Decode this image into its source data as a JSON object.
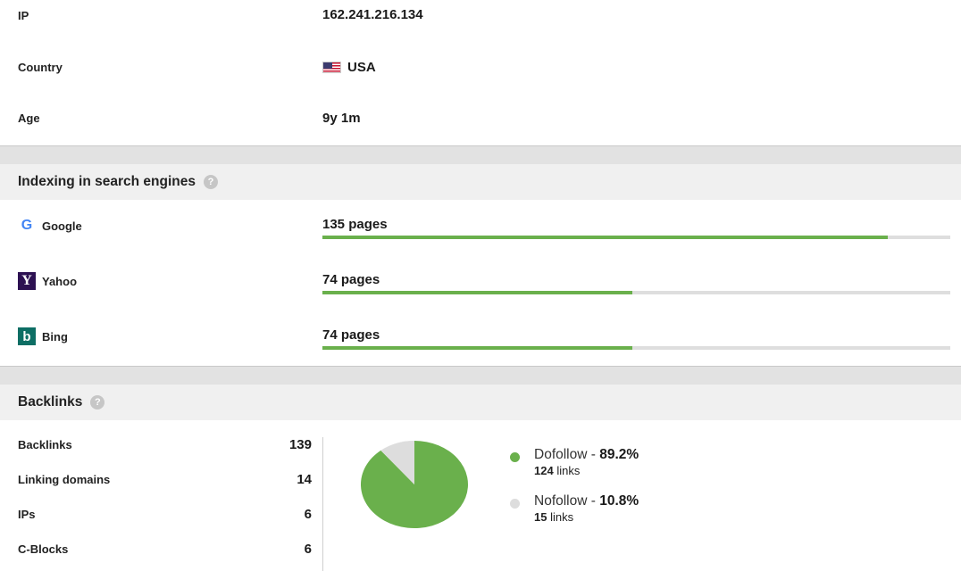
{
  "info": {
    "ip": {
      "label": "IP",
      "value": "162.241.216.134"
    },
    "country": {
      "label": "Country",
      "value": "USA",
      "flag_icon": "us-flag-icon"
    },
    "age": {
      "label": "Age",
      "value": "9y 1m"
    }
  },
  "indexing": {
    "title": "Indexing in search engines",
    "help_icon": "help-icon",
    "engines": [
      {
        "name": "Google",
        "icon": "google-icon",
        "logo_glyph": "G",
        "pages": "135 pages",
        "fill_fraction": 0.9,
        "color": "#6ab04c"
      },
      {
        "name": "Yahoo",
        "icon": "yahoo-icon",
        "logo_glyph": "Y",
        "pages": "74 pages",
        "fill_fraction": 0.493,
        "color": "#6ab04c"
      },
      {
        "name": "Bing",
        "icon": "bing-icon",
        "logo_glyph": "b",
        "pages": "74 pages",
        "fill_fraction": 0.493,
        "color": "#6ab04c"
      }
    ]
  },
  "backlinks": {
    "title": "Backlinks",
    "help_icon": "help-icon",
    "stats": [
      {
        "label": "Backlinks",
        "value": "139"
      },
      {
        "label": "Linking domains",
        "value": "14"
      },
      {
        "label": "IPs",
        "value": "6"
      },
      {
        "label": "C-Blocks",
        "value": "6"
      }
    ],
    "legend": [
      {
        "name": "Dofollow",
        "separator": " - ",
        "percent": "89.2%",
        "count": "124",
        "unit": " links",
        "color": "#6ab04c"
      },
      {
        "name": "Nofollow",
        "separator": " - ",
        "percent": "10.8%",
        "count": "15",
        "unit": " links",
        "color": "#dddddd"
      }
    ]
  },
  "chart_data": {
    "type": "pie",
    "categories": [
      "Dofollow",
      "Nofollow"
    ],
    "values": [
      89.2,
      10.8
    ],
    "colors": [
      "#6ab04c",
      "#dddddd"
    ]
  }
}
